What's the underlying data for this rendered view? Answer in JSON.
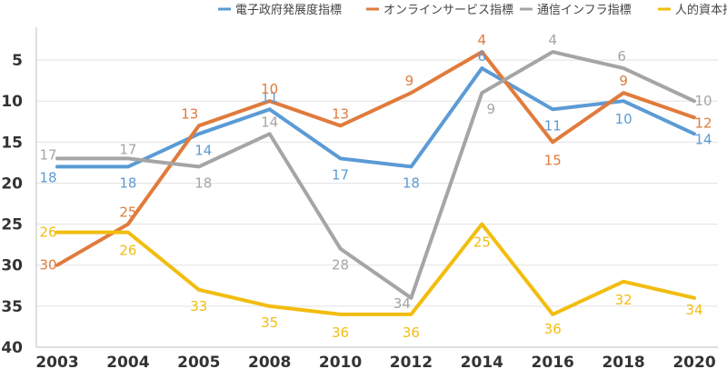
{
  "chart_data": {
    "type": "line",
    "title": "",
    "xlabel": "",
    "ylabel": "",
    "categories": [
      "2003",
      "2004",
      "2005",
      "2008",
      "2010",
      "2012",
      "2014",
      "2016",
      "2018",
      "2020"
    ],
    "y_inverted": true,
    "ylim": [
      1,
      40
    ],
    "yticks": [
      5,
      10,
      15,
      20,
      25,
      30,
      35,
      40
    ],
    "grid": true,
    "legend_position": "top-right",
    "series": [
      {
        "name": "電子政府発展度指標",
        "color": "#5b9bd5",
        "values": [
          18,
          18,
          14,
          11,
          17,
          18,
          6,
          11,
          10,
          14
        ]
      },
      {
        "name": "オンラインサービス指標",
        "color": "#e07b3c",
        "values": [
          30,
          25,
          13,
          10,
          13,
          9,
          4,
          15,
          9,
          12
        ]
      },
      {
        "name": "通信インフラ指標",
        "color": "#a5a5a5",
        "values": [
          17,
          17,
          18,
          14,
          28,
          34,
          9,
          4,
          6,
          10
        ]
      },
      {
        "name": "人的資本指標",
        "color": "#f2bd0f",
        "values": [
          26,
          26,
          33,
          35,
          36,
          36,
          25,
          36,
          32,
          34
        ]
      }
    ]
  }
}
